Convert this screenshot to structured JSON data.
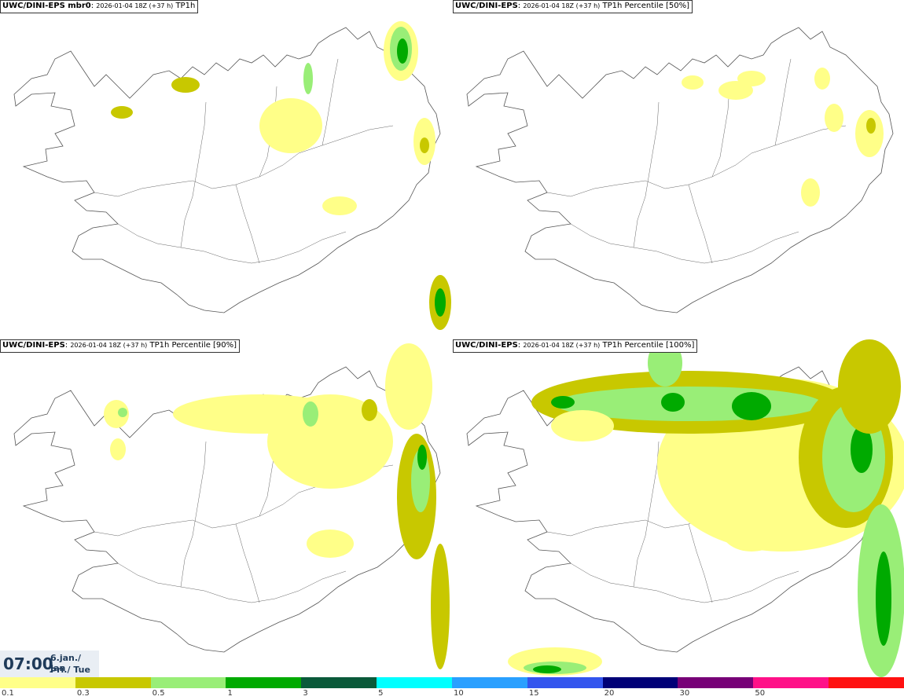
{
  "panels": [
    {
      "model": "UWC/DINI-EPS mbr0",
      "run": "2026-01-04 18Z (+37 h)",
      "field": "TP1h"
    },
    {
      "model": "UWC/DINI-EPS",
      "run": "2026-01-04 18Z (+37 h)",
      "field": "TP1h Percentile [50%]"
    },
    {
      "model": "UWC/DINI-EPS",
      "run": "2026-01-04 18Z (+37 h)",
      "field": "TP1h Percentile [90%]"
    },
    {
      "model": "UWC/DINI-EPS",
      "run": "2026-01-04 18Z (+37 h)",
      "field": "TP1h Percentile [100%]"
    }
  ],
  "valid_time": {
    "time": "07:00",
    "date_line1": "6.jan./ Jan",
    "date_line2": "Þri./ Tue"
  },
  "colorbar": {
    "colors": [
      "#ffff88",
      "#c8c800",
      "#99ee77",
      "#00aa00",
      "#0a5a3a",
      "#00ffff",
      "#2aa0ff",
      "#3355ee",
      "#000077",
      "#770077",
      "#ff1188",
      "#ff1111"
    ],
    "labels": [
      "0.1",
      "0.3",
      "0.5",
      "1",
      "3",
      "5",
      "10",
      "15",
      "20",
      "30",
      "50"
    ]
  },
  "map": {
    "coast_color": "#555555",
    "road_color": "#666666"
  }
}
